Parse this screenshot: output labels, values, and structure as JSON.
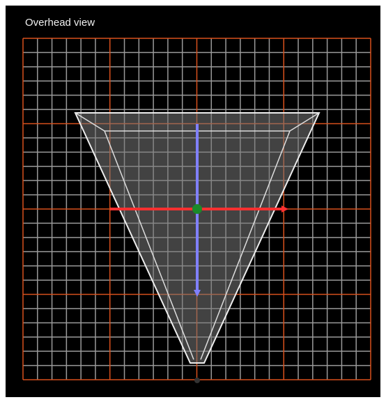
{
  "viewport": {
    "label": "Overhead view"
  }
}
